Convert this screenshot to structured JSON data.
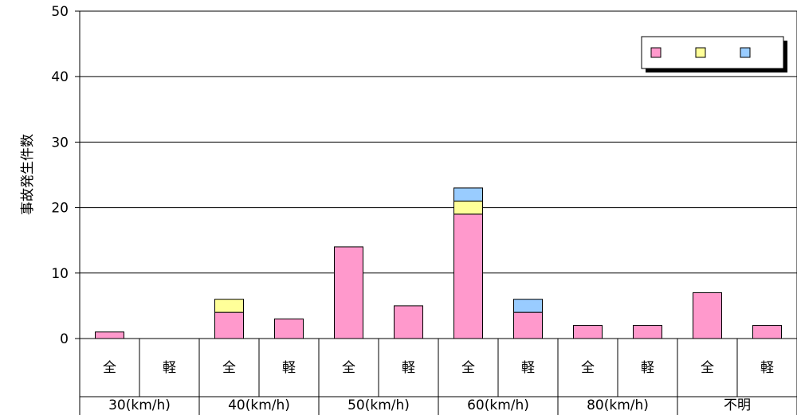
{
  "chart_data": {
    "type": "bar",
    "stacked": true,
    "ylabel": "事故発生件数",
    "ylim": [
      0,
      50
    ],
    "yticks": [
      0,
      10,
      20,
      30,
      40,
      50
    ],
    "grid": true,
    "legend_position": "top-right",
    "groups": [
      "30(km/h)",
      "40(km/h)",
      "50(km/h)",
      "60(km/h)",
      "80(km/h)",
      "不明"
    ],
    "subcategories": [
      "全",
      "軽",
      "全",
      "軽",
      "全",
      "軽",
      "全",
      "軽",
      "全",
      "軽",
      "全",
      "軽"
    ],
    "series": [
      {
        "color": "#ff99cc",
        "values": [
          1,
          0,
          4,
          3,
          14,
          5,
          19,
          4,
          2,
          2,
          7,
          2
        ]
      },
      {
        "color": "#ffff99",
        "values": [
          0,
          0,
          2,
          0,
          0,
          0,
          2,
          0,
          0,
          0,
          0,
          0
        ]
      },
      {
        "color": "#99ccff",
        "values": [
          0,
          0,
          0,
          0,
          0,
          0,
          2,
          2,
          0,
          0,
          0,
          0
        ]
      }
    ]
  }
}
